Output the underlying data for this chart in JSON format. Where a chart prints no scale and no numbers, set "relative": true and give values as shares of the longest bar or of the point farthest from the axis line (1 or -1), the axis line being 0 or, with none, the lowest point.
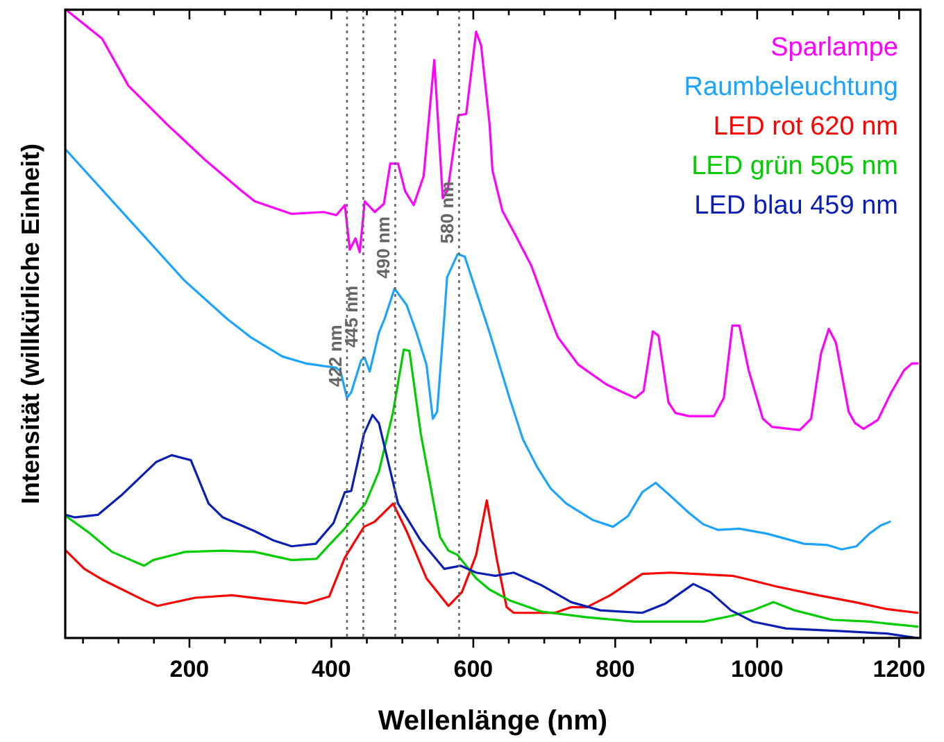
{
  "chart_data": {
    "type": "line",
    "relative": true,
    "xlabel": "Wellenlänge (nm)",
    "ylabel": "Intensität (willkürliche Einheit)",
    "legend": "top right",
    "xlim": [
      25,
      1230
    ],
    "xticks": [
      {
        "value": 50,
        "label": null
      },
      {
        "value": 100,
        "label": null
      },
      {
        "value": 150,
        "label": null
      },
      200,
      {
        "value": 250,
        "label": null
      },
      {
        "value": 300,
        "label": null
      },
      {
        "value": 350,
        "label": null
      },
      400,
      {
        "value": 450,
        "label": null
      },
      {
        "value": 500,
        "label": null
      },
      {
        "value": 550,
        "label": null
      },
      600,
      {
        "value": 650,
        "label": null
      },
      {
        "value": 700,
        "label": null
      },
      {
        "value": 750,
        "label": null
      },
      800,
      {
        "value": 850,
        "label": null
      },
      {
        "value": 900,
        "label": null
      },
      {
        "value": 950,
        "label": null
      },
      1000,
      {
        "value": 1050,
        "label": null
      },
      {
        "value": 1100,
        "label": null
      },
      {
        "value": 1150,
        "label": null
      },
      1200
    ],
    "ref_lines": [
      {
        "axis": "x",
        "value": 422,
        "label": "422 nm",
        "color": "#666666",
        "line_style": "dotted"
      },
      {
        "axis": "x",
        "value": 445,
        "label": "445 nm",
        "color": "#666666",
        "line_style": "dotted"
      },
      {
        "axis": "x",
        "value": 490,
        "label": "490 nm",
        "color": "#666666",
        "line_style": "dotted"
      },
      {
        "axis": "x",
        "value": 580,
        "label": "580 nm",
        "color": "#666666",
        "line_style": "dotted"
      }
    ],
    "series": [
      {
        "name": "Sparlampe",
        "color": "#ff00ff",
        "x": [
          26,
          77,
          114,
          169,
          221,
          272,
          292,
          344,
          389,
          407,
          419,
          426,
          434,
          440,
          447,
          461,
          474,
          483,
          494,
          504,
          516,
          530,
          545,
          557,
          564,
          579,
          590,
          604,
          611,
          623,
          627,
          641,
          660,
          682,
          709,
          719,
          748,
          787,
          807,
          828,
          840,
          853,
          861,
          875,
          885,
          904,
          939,
          953,
          965,
          975,
          988,
          1008,
          1021,
          1060,
          1076,
          1090,
          1101,
          1111,
          1129,
          1138,
          1150,
          1170,
          1189,
          1207,
          1218,
          1226
        ],
        "values": [
          1.0,
          0.954,
          0.879,
          0.817,
          0.762,
          0.713,
          0.695,
          0.675,
          0.678,
          0.673,
          0.689,
          0.618,
          0.636,
          0.614,
          0.695,
          0.678,
          0.691,
          0.755,
          0.755,
          0.711,
          0.689,
          0.735,
          0.92,
          0.7,
          0.713,
          0.832,
          0.834,
          0.965,
          0.943,
          0.817,
          0.744,
          0.68,
          0.64,
          0.592,
          0.508,
          0.479,
          0.435,
          0.404,
          0.393,
          0.382,
          0.393,
          0.488,
          0.481,
          0.375,
          0.358,
          0.353,
          0.353,
          0.382,
          0.497,
          0.497,
          0.426,
          0.349,
          0.336,
          0.331,
          0.349,
          0.453,
          0.492,
          0.47,
          0.36,
          0.342,
          0.333,
          0.347,
          0.391,
          0.426,
          0.437,
          0.437
        ]
      },
      {
        "name": "Raumbeleuchtung",
        "color": "#1aa3ff",
        "x": [
          26,
          192,
          253,
          286,
          331,
          364,
          407,
          413,
          422,
          428,
          442,
          447,
          454,
          467,
          475,
          489,
          506,
          520,
          534,
          543,
          549,
          559,
          563,
          578,
          588,
          623,
          651,
          670,
          690,
          709,
          731,
          768,
          797,
          818,
          838,
          857,
          877,
          904,
          924,
          945,
          975,
          1014,
          1066,
          1099,
          1119,
          1140,
          1158,
          1174,
          1187
        ],
        "values": [
          0.777,
          0.57,
          0.508,
          0.479,
          0.448,
          0.437,
          0.43,
          0.424,
          0.382,
          0.391,
          0.442,
          0.446,
          0.424,
          0.486,
          0.508,
          0.556,
          0.53,
          0.486,
          0.435,
          0.349,
          0.36,
          0.508,
          0.574,
          0.611,
          0.607,
          0.486,
          0.382,
          0.316,
          0.272,
          0.238,
          0.214,
          0.188,
          0.177,
          0.194,
          0.232,
          0.247,
          0.227,
          0.199,
          0.181,
          0.172,
          0.174,
          0.166,
          0.15,
          0.148,
          0.141,
          0.146,
          0.166,
          0.179,
          0.185
        ]
      },
      {
        "name": "LED rot 620 nm",
        "color": "#ff0000",
        "x": [
          26,
          52,
          77,
          136,
          155,
          208,
          260,
          305,
          364,
          397,
          419,
          446,
          461,
          487,
          506,
          534,
          565,
          584,
          604,
          619,
          633,
          647,
          657,
          715,
          738,
          760,
          793,
          838,
          877,
          965,
          988,
          1027,
          1086,
          1138,
          1183,
          1226
        ],
        "values": [
          0.139,
          0.11,
          0.093,
          0.06,
          0.051,
          0.064,
          0.068,
          0.062,
          0.055,
          0.066,
          0.128,
          0.177,
          0.185,
          0.214,
          0.17,
          0.095,
          0.051,
          0.073,
          0.132,
          0.219,
          0.126,
          0.049,
          0.04,
          0.04,
          0.049,
          0.049,
          0.068,
          0.102,
          0.104,
          0.099,
          0.093,
          0.082,
          0.068,
          0.057,
          0.046,
          0.04
        ]
      },
      {
        "name": "LED grün 505 nm",
        "color": "#00cc00",
        "x": [
          26,
          58,
          91,
          136,
          149,
          194,
          247,
          292,
          344,
          379,
          397,
          417,
          448,
          467,
          487,
          502,
          510,
          526,
          553,
          565,
          578,
          604,
          623,
          651,
          696,
          760,
          826,
          924,
          963,
          994,
          1023,
          1053,
          1105,
          1158,
          1226
        ],
        "values": [
          0.194,
          0.168,
          0.137,
          0.115,
          0.124,
          0.137,
          0.139,
          0.137,
          0.124,
          0.126,
          0.148,
          0.172,
          0.214,
          0.265,
          0.36,
          0.459,
          0.457,
          0.325,
          0.161,
          0.139,
          0.132,
          0.095,
          0.077,
          0.06,
          0.042,
          0.033,
          0.026,
          0.026,
          0.035,
          0.044,
          0.057,
          0.044,
          0.029,
          0.026,
          0.018
        ]
      },
      {
        "name": "LED blau 459 nm",
        "color": "#0a1eb4",
        "x": [
          26,
          38,
          71,
          104,
          153,
          175,
          202,
          227,
          247,
          292,
          319,
          344,
          378,
          403,
          419,
          428,
          446,
          458,
          467,
          494,
          526,
          559,
          582,
          604,
          631,
          657,
          696,
          738,
          779,
          807,
          838,
          871,
          910,
          934,
          963,
          994,
          1041,
          1119,
          1183,
          1226
        ],
        "values": [
          0.196,
          0.192,
          0.196,
          0.227,
          0.28,
          0.291,
          0.283,
          0.214,
          0.192,
          0.17,
          0.155,
          0.146,
          0.15,
          0.183,
          0.232,
          0.234,
          0.325,
          0.355,
          0.342,
          0.214,
          0.155,
          0.11,
          0.115,
          0.104,
          0.099,
          0.104,
          0.084,
          0.057,
          0.044,
          0.042,
          0.04,
          0.055,
          0.086,
          0.073,
          0.044,
          0.026,
          0.015,
          0.011,
          0.007,
          0.0
        ]
      }
    ]
  }
}
